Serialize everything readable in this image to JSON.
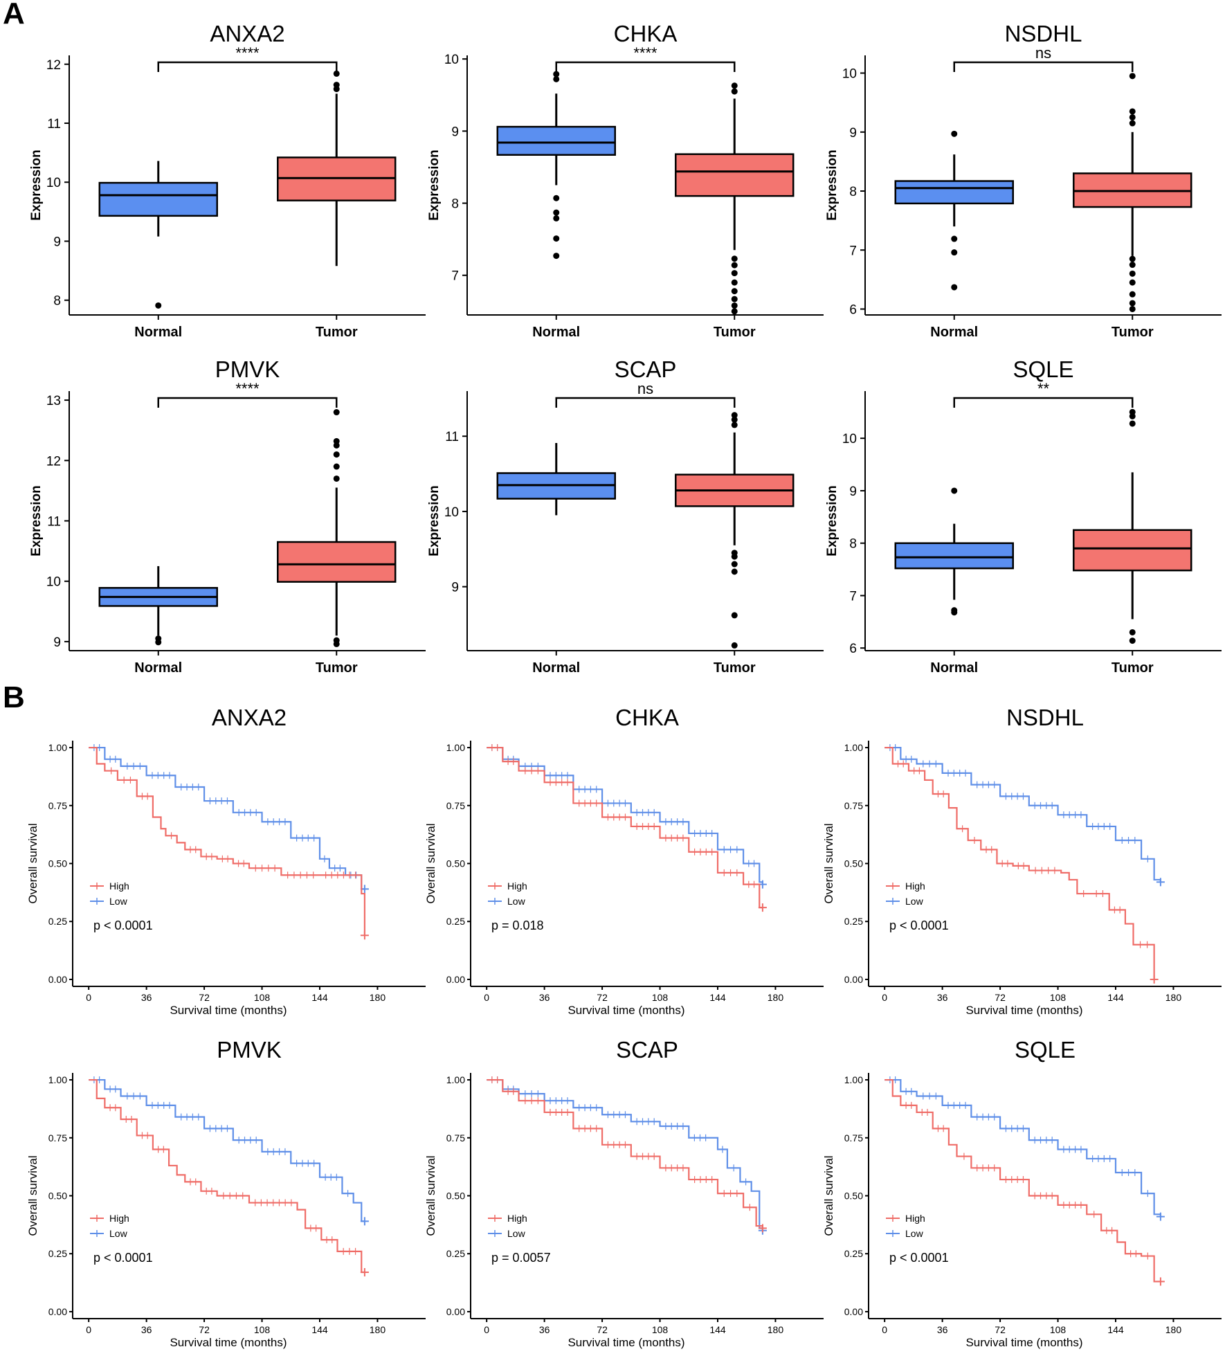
{
  "panels": {
    "a_label": "A",
    "b_label": "B"
  },
  "colors": {
    "normal": "#5b8ff0",
    "tumor": "#f37570",
    "high": "#ef6c67",
    "low": "#5f8fe8"
  },
  "chart_data": [
    {
      "type": "box",
      "panel": "A",
      "title": "ANXA2",
      "ylabel": "Expression",
      "categories": [
        "Normal",
        "Tumor"
      ],
      "ylim": [
        7.75,
        12.15
      ],
      "yticks": [
        8,
        9,
        10,
        11,
        12
      ],
      "significance": "****",
      "boxes": [
        {
          "group": "Normal",
          "q1": 9.43,
          "median": 9.78,
          "q3": 9.99,
          "whisker_low": 9.08,
          "whisker_high": 10.36,
          "outliers": [
            7.91
          ]
        },
        {
          "group": "Tumor",
          "q1": 9.69,
          "median": 10.07,
          "q3": 10.42,
          "whisker_low": 8.58,
          "whisker_high": 11.5,
          "outliers": [
            11.58,
            11.65,
            11.84
          ]
        }
      ]
    },
    {
      "type": "box",
      "panel": "A",
      "title": "CHKA",
      "ylabel": "Expression",
      "categories": [
        "Normal",
        "Tumor"
      ],
      "ylim": [
        6.45,
        10.05
      ],
      "yticks": [
        7,
        8,
        9,
        10
      ],
      "significance": "****",
      "boxes": [
        {
          "group": "Normal",
          "q1": 8.67,
          "median": 8.84,
          "q3": 9.06,
          "whisker_low": 8.25,
          "whisker_high": 9.52,
          "outliers": [
            7.27,
            7.51,
            7.79,
            7.87,
            8.07,
            9.72,
            9.79
          ]
        },
        {
          "group": "Tumor",
          "q1": 8.1,
          "median": 8.44,
          "q3": 8.68,
          "whisker_low": 7.35,
          "whisker_high": 9.45,
          "outliers": [
            6.5,
            6.58,
            6.67,
            6.78,
            6.9,
            7.03,
            7.14,
            7.23,
            9.55,
            9.63
          ]
        }
      ]
    },
    {
      "type": "box",
      "panel": "A",
      "title": "NSDHL",
      "ylabel": "Expression",
      "categories": [
        "Normal",
        "Tumor"
      ],
      "ylim": [
        5.9,
        10.3
      ],
      "yticks": [
        6,
        7,
        8,
        9,
        10
      ],
      "significance": "ns",
      "boxes": [
        {
          "group": "Normal",
          "q1": 7.79,
          "median": 8.05,
          "q3": 8.17,
          "whisker_low": 7.4,
          "whisker_high": 8.62,
          "outliers": [
            6.37,
            6.96,
            7.19,
            8.97
          ]
        },
        {
          "group": "Tumor",
          "q1": 7.73,
          "median": 8.0,
          "q3": 8.3,
          "whisker_low": 6.9,
          "whisker_high": 9.0,
          "outliers": [
            6.0,
            6.1,
            6.25,
            6.45,
            6.6,
            6.75,
            6.85,
            9.15,
            9.25,
            9.35,
            9.95
          ]
        }
      ]
    },
    {
      "type": "box",
      "panel": "A",
      "title": "PMVK",
      "ylabel": "Expression",
      "categories": [
        "Normal",
        "Tumor"
      ],
      "ylim": [
        8.85,
        13.15
      ],
      "yticks": [
        9,
        10,
        11,
        12,
        13
      ],
      "significance": "****",
      "boxes": [
        {
          "group": "Normal",
          "q1": 9.59,
          "median": 9.74,
          "q3": 9.89,
          "whisker_low": 9.1,
          "whisker_high": 10.25,
          "outliers": [
            8.99,
            9.05
          ]
        },
        {
          "group": "Tumor",
          "q1": 9.99,
          "median": 10.28,
          "q3": 10.65,
          "whisker_low": 9.1,
          "whisker_high": 11.55,
          "outliers": [
            8.96,
            9.02,
            11.7,
            11.9,
            12.1,
            12.25,
            12.32,
            12.8
          ]
        }
      ]
    },
    {
      "type": "box",
      "panel": "A",
      "title": "SCAP",
      "ylabel": "Expression",
      "categories": [
        "Normal",
        "Tumor"
      ],
      "ylim": [
        8.15,
        11.6
      ],
      "yticks": [
        9,
        10,
        11
      ],
      "significance": "ns",
      "boxes": [
        {
          "group": "Normal",
          "q1": 10.17,
          "median": 10.35,
          "q3": 10.51,
          "whisker_low": 9.95,
          "whisker_high": 10.91,
          "outliers": []
        },
        {
          "group": "Tumor",
          "q1": 10.07,
          "median": 10.28,
          "q3": 10.49,
          "whisker_low": 9.55,
          "whisker_high": 11.05,
          "outliers": [
            8.22,
            8.62,
            9.2,
            9.3,
            9.4,
            9.45,
            11.15,
            11.22,
            11.28
          ]
        }
      ]
    },
    {
      "type": "box",
      "panel": "A",
      "title": "SQLE",
      "ylabel": "Expression",
      "categories": [
        "Normal",
        "Tumor"
      ],
      "ylim": [
        5.95,
        10.9
      ],
      "yticks": [
        6,
        7,
        8,
        9,
        10
      ],
      "significance": "**",
      "boxes": [
        {
          "group": "Normal",
          "q1": 7.52,
          "median": 7.73,
          "q3": 8.0,
          "whisker_low": 6.92,
          "whisker_high": 8.37,
          "outliers": [
            6.68,
            6.72,
            9.0
          ]
        },
        {
          "group": "Tumor",
          "q1": 7.48,
          "median": 7.9,
          "q3": 8.25,
          "whisker_low": 6.55,
          "whisker_high": 9.35,
          "outliers": [
            6.14,
            6.3,
            10.28,
            10.42,
            10.5
          ]
        }
      ]
    },
    {
      "type": "line",
      "panel": "B",
      "title": "ANXA2",
      "xlabel": "Survival time (months)",
      "ylabel": "Overall survival",
      "xlim": [
        -10,
        210
      ],
      "ylim": [
        -0.03,
        1.03
      ],
      "xticks": [
        0,
        36,
        72,
        108,
        144,
        180
      ],
      "yticks": [
        "0.00",
        "0.25",
        "0.50",
        "0.75",
        "1.00"
      ],
      "legend": [
        "High",
        "Low"
      ],
      "pvalue": "p < 0.0001",
      "series": [
        {
          "name": "High",
          "x": [
            0,
            5,
            10,
            18,
            30,
            40,
            45,
            48,
            55,
            60,
            70,
            80,
            90,
            100,
            120,
            144,
            170,
            172
          ],
          "y": [
            1.0,
            0.93,
            0.9,
            0.86,
            0.79,
            0.7,
            0.65,
            0.62,
            0.59,
            0.56,
            0.53,
            0.52,
            0.5,
            0.48,
            0.45,
            0.45,
            0.37,
            0.19
          ]
        },
        {
          "name": "Low",
          "x": [
            0,
            10,
            20,
            36,
            54,
            72,
            90,
            108,
            126,
            144,
            150,
            160,
            170,
            172
          ],
          "y": [
            1.0,
            0.95,
            0.92,
            0.88,
            0.83,
            0.77,
            0.72,
            0.68,
            0.61,
            0.52,
            0.48,
            0.45,
            0.39,
            0.39
          ]
        }
      ]
    },
    {
      "type": "line",
      "panel": "B",
      "title": "CHKA",
      "xlabel": "Survival time (months)",
      "ylabel": "Overall survival",
      "xlim": [
        -10,
        210
      ],
      "ylim": [
        -0.03,
        1.03
      ],
      "xticks": [
        0,
        36,
        72,
        108,
        144,
        180
      ],
      "yticks": [
        "0.00",
        "0.25",
        "0.50",
        "0.75",
        "1.00"
      ],
      "legend": [
        "High",
        "Low"
      ],
      "pvalue": "p = 0.018",
      "series": [
        {
          "name": "High",
          "x": [
            0,
            10,
            20,
            36,
            54,
            72,
            90,
            108,
            126,
            144,
            160,
            170,
            172
          ],
          "y": [
            1.0,
            0.94,
            0.9,
            0.85,
            0.76,
            0.7,
            0.66,
            0.61,
            0.55,
            0.46,
            0.41,
            0.31,
            0.31
          ]
        },
        {
          "name": "Low",
          "x": [
            0,
            10,
            20,
            36,
            54,
            72,
            90,
            108,
            126,
            144,
            160,
            170,
            172
          ],
          "y": [
            1.0,
            0.95,
            0.92,
            0.88,
            0.82,
            0.76,
            0.72,
            0.68,
            0.63,
            0.56,
            0.5,
            0.42,
            0.41
          ]
        }
      ]
    },
    {
      "type": "line",
      "panel": "B",
      "title": "NSDHL",
      "xlabel": "Survival time (months)",
      "ylabel": "Overall survival",
      "xlim": [
        -10,
        210
      ],
      "ylim": [
        -0.03,
        1.03
      ],
      "xticks": [
        0,
        36,
        72,
        108,
        144,
        180
      ],
      "yticks": [
        "0.00",
        "0.25",
        "0.50",
        "0.75",
        "1.00"
      ],
      "legend": [
        "High",
        "Low"
      ],
      "pvalue": "p < 0.0001",
      "series": [
        {
          "name": "High",
          "x": [
            0,
            5,
            15,
            25,
            30,
            40,
            45,
            52,
            60,
            70,
            80,
            90,
            110,
            115,
            120,
            128,
            140,
            150,
            155,
            168
          ],
          "y": [
            1.0,
            0.93,
            0.9,
            0.86,
            0.8,
            0.74,
            0.65,
            0.6,
            0.56,
            0.5,
            0.49,
            0.47,
            0.46,
            0.43,
            0.37,
            0.37,
            0.3,
            0.24,
            0.15,
            0.0
          ]
        },
        {
          "name": "Low",
          "x": [
            0,
            10,
            20,
            36,
            54,
            72,
            90,
            108,
            126,
            144,
            160,
            168,
            172
          ],
          "y": [
            1.0,
            0.95,
            0.93,
            0.89,
            0.84,
            0.79,
            0.75,
            0.71,
            0.66,
            0.6,
            0.52,
            0.43,
            0.42
          ]
        }
      ]
    },
    {
      "type": "line",
      "panel": "B",
      "title": "PMVK",
      "xlabel": "Survival time (months)",
      "ylabel": "Overall survival",
      "xlim": [
        -10,
        210
      ],
      "ylim": [
        -0.03,
        1.03
      ],
      "xticks": [
        0,
        36,
        72,
        108,
        144,
        180
      ],
      "yticks": [
        "0.00",
        "0.25",
        "0.50",
        "0.75",
        "1.00"
      ],
      "legend": [
        "High",
        "Low"
      ],
      "pvalue": "p < 0.0001",
      "series": [
        {
          "name": "High",
          "x": [
            0,
            5,
            10,
            20,
            30,
            40,
            50,
            55,
            60,
            70,
            80,
            100,
            130,
            135,
            145,
            155,
            170,
            172
          ],
          "y": [
            1.0,
            0.92,
            0.88,
            0.83,
            0.76,
            0.7,
            0.63,
            0.59,
            0.56,
            0.52,
            0.5,
            0.47,
            0.44,
            0.36,
            0.31,
            0.26,
            0.17,
            0.17
          ]
        },
        {
          "name": "Low",
          "x": [
            0,
            10,
            20,
            36,
            54,
            72,
            90,
            108,
            126,
            144,
            158,
            165,
            170,
            172
          ],
          "y": [
            1.0,
            0.96,
            0.93,
            0.89,
            0.84,
            0.79,
            0.74,
            0.69,
            0.64,
            0.58,
            0.51,
            0.47,
            0.39,
            0.39
          ]
        }
      ]
    },
    {
      "type": "line",
      "panel": "B",
      "title": "SCAP",
      "xlabel": "Survival time (months)",
      "ylabel": "Overall survival",
      "xlim": [
        -10,
        210
      ],
      "ylim": [
        -0.03,
        1.03
      ],
      "xticks": [
        0,
        36,
        72,
        108,
        144,
        180
      ],
      "yticks": [
        "0.00",
        "0.25",
        "0.50",
        "0.75",
        "1.00"
      ],
      "legend": [
        "High",
        "Low"
      ],
      "pvalue": "p = 0.0057",
      "series": [
        {
          "name": "High",
          "x": [
            0,
            10,
            20,
            36,
            54,
            72,
            90,
            108,
            126,
            144,
            160,
            168,
            172
          ],
          "y": [
            1.0,
            0.95,
            0.91,
            0.86,
            0.79,
            0.72,
            0.67,
            0.62,
            0.57,
            0.51,
            0.45,
            0.37,
            0.36
          ]
        },
        {
          "name": "Low",
          "x": [
            0,
            10,
            20,
            36,
            54,
            72,
            90,
            108,
            126,
            140,
            144,
            150,
            158,
            165,
            170,
            172
          ],
          "y": [
            1.0,
            0.96,
            0.94,
            0.91,
            0.88,
            0.85,
            0.82,
            0.8,
            0.75,
            0.75,
            0.7,
            0.62,
            0.56,
            0.52,
            0.36,
            0.35
          ]
        }
      ]
    },
    {
      "type": "line",
      "panel": "B",
      "title": "SQLE",
      "xlabel": "Survival time (months)",
      "ylabel": "Overall survival",
      "xlim": [
        -10,
        210
      ],
      "ylim": [
        -0.03,
        1.03
      ],
      "xticks": [
        0,
        36,
        72,
        108,
        144,
        180
      ],
      "yticks": [
        "0.00",
        "0.25",
        "0.50",
        "0.75",
        "1.00"
      ],
      "legend": [
        "High",
        "Low"
      ],
      "pvalue": "p < 0.0001",
      "series": [
        {
          "name": "High",
          "x": [
            0,
            5,
            10,
            20,
            30,
            40,
            45,
            54,
            72,
            90,
            108,
            126,
            135,
            145,
            150,
            160,
            168,
            172
          ],
          "y": [
            1.0,
            0.93,
            0.89,
            0.86,
            0.79,
            0.72,
            0.67,
            0.62,
            0.57,
            0.5,
            0.46,
            0.42,
            0.35,
            0.3,
            0.25,
            0.24,
            0.13,
            0.13
          ]
        },
        {
          "name": "Low",
          "x": [
            0,
            10,
            20,
            36,
            54,
            72,
            90,
            108,
            126,
            144,
            160,
            168,
            172
          ],
          "y": [
            1.0,
            0.95,
            0.93,
            0.89,
            0.84,
            0.79,
            0.74,
            0.7,
            0.66,
            0.6,
            0.51,
            0.42,
            0.41
          ]
        }
      ]
    }
  ]
}
